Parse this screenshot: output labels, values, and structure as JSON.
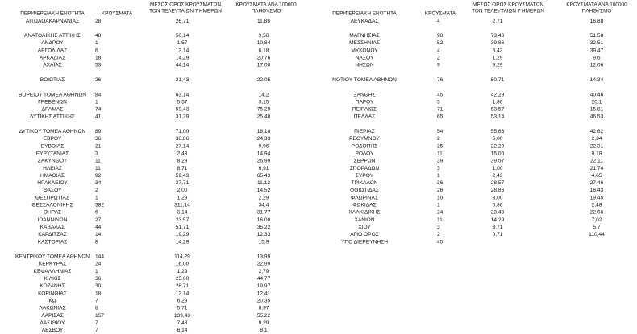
{
  "left": {
    "headers": [
      "ΠΕΡΙΦΕΡΕΙΑΚΗ ΕΝΟΤΗΤΑ",
      "ΚΡΟΥΣΜΑΤΑ",
      [
        "ΜΕΣΟΣ ΟΡΟΣ ΚΡΟΥΣΜΑΤΩΝ",
        "ΤΟΝ ΤΕΛΕΥΤΑΙΩΝ 7 ΗΜΕΡΩΝ"
      ],
      [
        "ΚΡΟΥΣΜΑΤΑ ΑΝΑ 100000",
        "ΠΛΗΘΥΣΜΟ"
      ]
    ],
    "groups": [
      [
        [
          "ΑΙΤΩΛΟΑΚΑΡΝΑΝΙΑΣ",
          "28",
          "26,71",
          "11,86"
        ]
      ],
      [
        [
          "ΑΝΑΤΟΛΙΚΗΣ ΑΤΤΙΚΗΣ",
          "48",
          "50,14",
          "9,56"
        ],
        [
          "ΑΝΔΡΟΥ",
          "1",
          "1,57",
          "10,84"
        ],
        [
          "ΑΡΓΟΛΙΔΑΣ",
          "6",
          "13,14",
          "6,18"
        ],
        [
          "ΑΡΚΑΔΙΑΣ",
          "18",
          "14,29",
          "20,76"
        ],
        [
          "ΑΧΑΪΑΣ",
          "53",
          "44,14",
          "17,08"
        ]
      ],
      [
        [
          "ΒΟΙΩΤΙΑΣ",
          "26",
          "21,43",
          "22,05"
        ]
      ],
      [
        [
          "ΒΟΡΕΙΟΥ ΤΟΜΕΑ ΑΘΗΝΩΝ",
          "84",
          "63,14",
          "14,2"
        ],
        [
          "ΓΡΕΒΕΝΩΝ",
          "1",
          "5,57",
          "3,15"
        ],
        [
          "ΔΡΑΜΑΣ",
          "74",
          "59,43",
          "75,29"
        ],
        [
          "ΔΥΤΙΚΗΣ ΑΤΤΙΚΗΣ",
          "41",
          "31,29",
          "25,48"
        ]
      ],
      [
        [
          "ΔΥΤΙΚΟΥ ΤΟΜΕΑ ΑΘΗΝΩΝ",
          "89",
          "71,00",
          "18,18"
        ],
        [
          "ΕΒΡΟΥ",
          "36",
          "38,86",
          "24,33"
        ],
        [
          "ΕΥΒΟΙΑΣ",
          "21",
          "27,14",
          "9,96"
        ],
        [
          "ΕΥΡΥΤΑΝΙΑΣ",
          "3",
          "2,43",
          "14,94"
        ],
        [
          "ΖΑΚΥΝΘΟΥ",
          "11",
          "8,29",
          "26,99"
        ],
        [
          "ΗΛΕΙΑΣ",
          "11",
          "8,71",
          "6,91"
        ],
        [
          "ΗΜΑΘΙΑΣ",
          "92",
          "59,43",
          "65,43"
        ],
        [
          "ΗΡΑΚΛΕΙΟΥ",
          "34",
          "27,71",
          "11,13"
        ],
        [
          "ΘΑΣΟΥ",
          "2",
          "2,00",
          "14,52"
        ],
        [
          "ΘΕΣΠΡΩΤΙΑΣ",
          "1",
          "1,29",
          "2,29"
        ],
        [
          "ΘΕΣΣΑΛΟΝΙΚΗΣ",
          "382",
          "311,14",
          "34,4"
        ],
        [
          "ΘΗΡΑΣ",
          "6",
          "3,14",
          "31,77"
        ],
        [
          "ΙΩΑΝΝΙΝΩΝ",
          "27",
          "23,57",
          "16,08"
        ],
        [
          "ΚΑΒΑΛΑΣ",
          "44",
          "51,71",
          "35,22"
        ],
        [
          "ΚΑΡΔΙΤΣΑΣ",
          "14",
          "19,29",
          "12,33"
        ],
        [
          "ΚΑΣΤΟΡΙΑΣ",
          "8",
          "14,29",
          "15,9"
        ]
      ],
      [
        [
          "ΚΕΝΤΡΙΚΟΥ ΤΟΜΕΑ ΑΘΗΝΩΝ",
          "144",
          "114,29",
          "13,99"
        ],
        [
          "ΚΕΡΚΥΡΑΣ",
          "24",
          "16,00",
          "22,99"
        ],
        [
          "ΚΕΦΑΛΛΗΝΙΑΣ",
          "1",
          "1,29",
          "2,79"
        ],
        [
          "ΚΙΛΚΙΣ",
          "36",
          "25,00",
          "44,77"
        ],
        [
          "ΚΟΖΑΝΗΣ",
          "30",
          "28,71",
          "19,97"
        ],
        [
          "ΚΟΡΙΝΘΙΑΣ",
          "18",
          "12,14",
          "12,41"
        ],
        [
          "ΚΩ",
          "7",
          "6,29",
          "20,35"
        ],
        [
          "ΛΑΚΩΝΙΑΣ",
          "8",
          "5,71",
          "8,97"
        ],
        [
          "ΛΑΡΙΣΑΣ",
          "157",
          "139,43",
          "55,22"
        ],
        [
          "ΛΑΣΙΘΙΟΥ",
          "7",
          "7,43",
          "9,29"
        ],
        [
          "ΛΕΣΒΟΥ",
          "7",
          "6,14",
          "8,1"
        ]
      ]
    ]
  },
  "right": {
    "headers": [
      "ΠΕΡΙΦΕΡΕΙΑΚΗ ΕΝΟΤΗΤΑ",
      "ΚΡΟΥΣΜΑΤΑ",
      [
        "ΜΕΣΟΣ ΟΡΟΣ ΚΡΟΥΣΜΑΤΩΝ",
        "ΤΟΝ ΤΕΛΕΥΤΑΙΩΝ 7 ΗΜΕΡΩΝ"
      ],
      [
        "ΚΡΟΥΣΜΑΤΑ ΑΝΑ 100000",
        "ΠΛΗΘΥΣΜΟ"
      ]
    ],
    "groups": [
      [
        [
          "ΛΕΥΚΑΔΑΣ",
          "4",
          "2,71",
          "16,88"
        ]
      ],
      [
        [
          "ΜΑΓΝΗΣΙΑΣ",
          "98",
          "73,43",
          "51,58"
        ],
        [
          "ΜΕΣΣΗΝΙΑΣ",
          "52",
          "39,86",
          "32,51"
        ],
        [
          "ΜΥΚΟΝΟΥ",
          "4",
          "6,43",
          "39,47"
        ],
        [
          "ΝΑΞΟΥ",
          "2",
          "1,29",
          "9,6"
        ],
        [
          "ΝΗΣΩΝ",
          "9",
          "9,29",
          "12,06"
        ]
      ],
      [
        [
          "ΝΟΤΙΟΥ ΤΟΜΕΑ ΑΘΗΝΩΝ",
          "76",
          "50,71",
          "14,34"
        ]
      ],
      [
        [
          "ΞΑΝΘΗΣ",
          "45",
          "42,29",
          "40,46"
        ],
        [
          "ΠΑΡΟΥ",
          "3",
          "1,86",
          "20,1"
        ],
        [
          "ΠΕΙΡΑΙΩΣ",
          "71",
          "53,57",
          "15,81"
        ],
        [
          "ΠΕΛΛΑΣ",
          "65",
          "53,14",
          "46,53"
        ]
      ],
      [
        [
          "ΠΙΕΡΙΑΣ",
          "54",
          "55,86",
          "42,62"
        ],
        [
          "ΡΕΘΥΜΝΟΥ",
          "2",
          "5,00",
          "2,34"
        ],
        [
          "ΡΟΔΟΠΗΣ",
          "25",
          "22,29",
          "22,31"
        ],
        [
          "ΡΟΔΟΥ",
          "11",
          "15,00",
          "9,18"
        ],
        [
          "ΣΕΡΡΩΝ",
          "39",
          "39,57",
          "22,11"
        ],
        [
          "ΣΠΟΡΑΔΩΝ",
          "3",
          "1,00",
          "21,74"
        ],
        [
          "ΣΥΡΟΥ",
          "1",
          "2,43",
          "4,65"
        ],
        [
          "ΤΡΙΚΑΛΩΝ",
          "36",
          "28,57",
          "27,46"
        ],
        [
          "ΦΘΙΩΤΙΔΑΣ",
          "26",
          "28,86",
          "16,43"
        ],
        [
          "ΦΛΩΡΙΝΑΣ",
          "10",
          "8,00",
          "19,45"
        ],
        [
          "ΦΩΚΙΔΑΣ",
          "1",
          "0,86",
          "2,48"
        ],
        [
          "ΧΑΛΚΙΔΙΚΗΣ",
          "24",
          "23,43",
          "22,66"
        ],
        [
          "ΧΑΝΙΩΝ",
          "11",
          "14,29",
          "7,02"
        ],
        [
          "ΧΙΟΥ",
          "3",
          "3,71",
          "5,7"
        ],
        [
          "ΑΓΙΟ ΟΡΟΣ",
          "2",
          "0,71",
          "110,44"
        ],
        [
          "ΥΠΟ ΔΙΕΡΕΥΝΗΣΗ",
          "45"
        ]
      ]
    ]
  }
}
